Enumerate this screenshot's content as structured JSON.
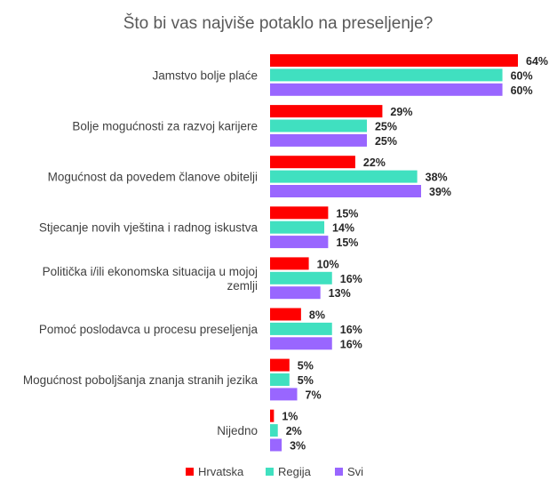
{
  "chart_data": {
    "type": "bar",
    "orientation": "horizontal",
    "title": "Što bi vas najviše potaklo na preseljenje?",
    "categories": [
      "Jamstvo bolje plaće",
      "Bolje mogućnosti za razvoj karijere",
      "Mogućnost da povedem članove obitelji",
      "Stjecanje novih vještina i radnog iskustva",
      "Politička i/ili ekonomska situacija u mojoj zemlji",
      "Pomoć poslodavca u procesu preseljenja",
      "Mogućnost poboljšanja znanja stranih jezika",
      "Nijedno"
    ],
    "category_lines": [
      [
        "Jamstvo bolje plaće"
      ],
      [
        "Bolje mogućnosti za razvoj karijere"
      ],
      [
        "Mogućnost da povedem članove obitelji"
      ],
      [
        "Stjecanje novih vještina i radnog iskustva"
      ],
      [
        "Politička i/ili ekonomska situacija u mojoj",
        "zemlji"
      ],
      [
        "Pomoć poslodavca u procesu preseljenja"
      ],
      [
        "Mogućnost poboljšanja znanja stranih jezika"
      ],
      [
        "Nijedno"
      ]
    ],
    "series": [
      {
        "name": "Hrvatska",
        "color": "#ff0000",
        "values": [
          64,
          29,
          22,
          15,
          10,
          8,
          5,
          1
        ]
      },
      {
        "name": "Regija",
        "color": "#40e0c0",
        "values": [
          60,
          25,
          38,
          14,
          16,
          16,
          5,
          2
        ]
      },
      {
        "name": "Svi",
        "color": "#9966ff",
        "values": [
          60,
          25,
          39,
          15,
          13,
          16,
          7,
          3
        ]
      }
    ],
    "value_suffix": "%",
    "xlim": [
      0,
      64
    ],
    "grid": false,
    "legend_position": "bottom"
  }
}
